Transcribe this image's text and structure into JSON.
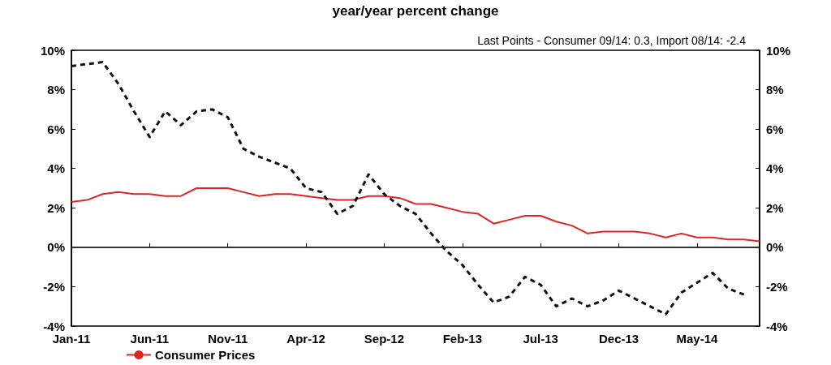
{
  "chart_data": {
    "type": "line",
    "title": "year/year percent change",
    "annotations": [
      "Last Points - Consumer 09/14: 0.3, Import 08/14: -2.4"
    ],
    "categories": [
      "Jan-11",
      null,
      null,
      null,
      null,
      "Jun-11",
      null,
      null,
      null,
      null,
      "Nov-11",
      null,
      null,
      null,
      null,
      "Apr-12",
      null,
      null,
      null,
      null,
      "Sep-12",
      null,
      null,
      null,
      null,
      "Feb-13",
      null,
      null,
      null,
      null,
      "Jul-13",
      null,
      null,
      null,
      null,
      "Dec-13",
      null,
      null,
      null,
      null,
      "May-14",
      null,
      null,
      null,
      null
    ],
    "series": [
      {
        "name": "Consumer Prices",
        "color": "#e02424",
        "line_style": "solid",
        "values": [
          2.3,
          2.4,
          2.7,
          2.8,
          2.7,
          2.7,
          2.6,
          2.6,
          3.0,
          3.0,
          3.0,
          2.8,
          2.6,
          2.7,
          2.7,
          2.6,
          2.5,
          2.4,
          2.4,
          2.6,
          2.6,
          2.5,
          2.2,
          2.2,
          2.0,
          1.8,
          1.7,
          1.2,
          1.4,
          1.6,
          1.6,
          1.3,
          1.1,
          0.7,
          0.8,
          0.8,
          0.8,
          0.7,
          0.5,
          0.7,
          0.5,
          0.5,
          0.4,
          0.4,
          0.3
        ]
      },
      {
        "color": "#111111",
        "line_style": "dashed",
        "values": [
          9.2,
          9.3,
          9.4,
          8.3,
          6.9,
          5.6,
          6.9,
          6.2,
          6.9,
          7.0,
          6.6,
          5.0,
          4.6,
          4.3,
          4.0,
          3.0,
          2.8,
          1.7,
          2.1,
          3.7,
          2.7,
          2.1,
          1.7,
          0.7,
          -0.2,
          -0.9,
          -1.9,
          -2.8,
          -2.5,
          -1.5,
          -1.9,
          -3.0,
          -2.6,
          -3.0,
          -2.7,
          -2.2,
          -2.6,
          -3.0,
          -3.4,
          -2.3,
          -1.8,
          -1.3,
          -2.1,
          -2.4,
          null
        ]
      }
    ],
    "ylim": [
      -4,
      10
    ],
    "yticks": [
      {
        "value": -4,
        "label": "-4%"
      },
      {
        "value": -2,
        "label": "-2%"
      },
      {
        "value": 0,
        "label": "0%"
      },
      {
        "value": 2,
        "label": "2%"
      },
      {
        "value": 4,
        "label": "4%"
      },
      {
        "value": 6,
        "label": "6%"
      },
      {
        "value": 8,
        "label": "8%"
      },
      {
        "value": 10,
        "label": "10%"
      }
    ],
    "y2lim": [
      -4,
      10
    ],
    "y2ticks": [
      {
        "value": -4,
        "label": "-4%"
      },
      {
        "value": -2,
        "label": "-2%"
      },
      {
        "value": 0,
        "label": "0%"
      },
      {
        "value": 2,
        "label": "2%"
      },
      {
        "value": 4,
        "label": "4%"
      },
      {
        "value": 6,
        "label": "6%"
      },
      {
        "value": 8,
        "label": "8%"
      },
      {
        "value": 10,
        "label": "10%"
      }
    ],
    "ref_lines": [
      {
        "axis": "y",
        "value": 0,
        "color": "#333333"
      }
    ],
    "grid": false,
    "legend": "bottom left",
    "marker": "none"
  }
}
